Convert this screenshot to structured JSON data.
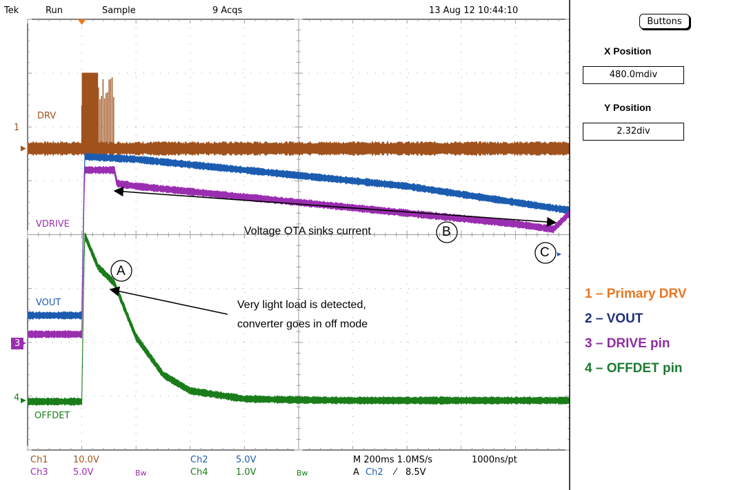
{
  "status_bar": {
    "brand": "Tek",
    "run_state": "Run",
    "acq_mode": "Sample",
    "acq_count": "9 Acqs",
    "datetime": "13 Aug 12 10:44:10"
  },
  "side_panel": {
    "buttons_label": "Buttons",
    "x_position_label": "X Position",
    "x_position_value": "480.0mdiv",
    "y_position_label": "Y Position",
    "y_position_value": "2.32div"
  },
  "legend": [
    {
      "label": "1 – Primary DRV",
      "color": "#e87722"
    },
    {
      "label": "2 – VOUT",
      "color": "#1f2f7a"
    },
    {
      "label": "3 – DRIVE pin",
      "color": "#8e2fa0"
    },
    {
      "label": "4 – OFFDET pin",
      "color": "#1a7a30"
    }
  ],
  "footer": {
    "ch1_name": "Ch1",
    "ch1_scale": "10.0V",
    "ch3_name": "Ch3",
    "ch3_scale": "5.0V",
    "ch3_bw": "Bw",
    "ch2_name": "Ch2",
    "ch2_scale": "5.0V",
    "ch4_name": "Ch4",
    "ch4_scale": "1.0V",
    "ch4_bw": "Bw",
    "timebase": "M 200ms 1.0MS/s",
    "record": "1000ns/pt",
    "trigger_prefix": "A",
    "trigger_source": "Ch2",
    "trigger_slope": "⁄",
    "trigger_level": "8.5V"
  },
  "annotations": {
    "ota_text": "Voltage OTA sinks current",
    "light_load_line1": "Very light load is detected,",
    "light_load_line2": "converter goes in off mode",
    "marker_a": "A",
    "marker_b": "B",
    "marker_c": "C"
  },
  "chart_data": {
    "type": "line",
    "x_divisions": 10,
    "y_divisions": 8,
    "grid": true,
    "xlabel": "",
    "ylabel": "",
    "x": [
      -1,
      0,
      0.05,
      0.6,
      0.7,
      1,
      2,
      3,
      4,
      5,
      6,
      7,
      8,
      8.7,
      9
    ],
    "series": [
      {
        "name": "DRV",
        "channel_marker": "1",
        "color": "#a0521d",
        "x": [
          -1,
          0,
          9
        ],
        "y": [
          1.6,
          1.6,
          1.6
        ]
      },
      {
        "name": "VOUT",
        "channel_marker": "",
        "color": "#1c5cb0",
        "x": [
          -1,
          0,
          0.05,
          1,
          2,
          3,
          4,
          5,
          6,
          7,
          8,
          9
        ],
        "y": [
          -1.5,
          -1.5,
          1.45,
          1.4,
          1.3,
          1.2,
          1.1,
          1.0,
          0.9,
          0.75,
          0.6,
          0.45
        ]
      },
      {
        "name": "VDRIVE",
        "channel_marker": "3",
        "color": "#9a2eb0",
        "x": [
          -1,
          0,
          0.05,
          0.6,
          0.65,
          1,
          2,
          3,
          4,
          5,
          6,
          7,
          8,
          8.7,
          9
        ],
        "y": [
          -1.85,
          -1.85,
          1.2,
          1.2,
          0.95,
          0.9,
          0.8,
          0.7,
          0.6,
          0.5,
          0.4,
          0.3,
          0.2,
          0.1,
          0.4
        ]
      },
      {
        "name": "OFFDET",
        "channel_marker": "4",
        "color": "#1a7d1a",
        "x": [
          -1,
          0,
          0.05,
          0.3,
          0.6,
          1,
          1.5,
          2,
          3,
          4,
          5,
          6,
          7,
          8,
          9
        ],
        "y": [
          -3.1,
          -3.1,
          0.0,
          -0.6,
          -0.9,
          -1.9,
          -2.6,
          -2.9,
          -3.05,
          -3.07,
          -3.08,
          -3.08,
          -3.08,
          -3.08,
          -3.08
        ]
      }
    ]
  }
}
